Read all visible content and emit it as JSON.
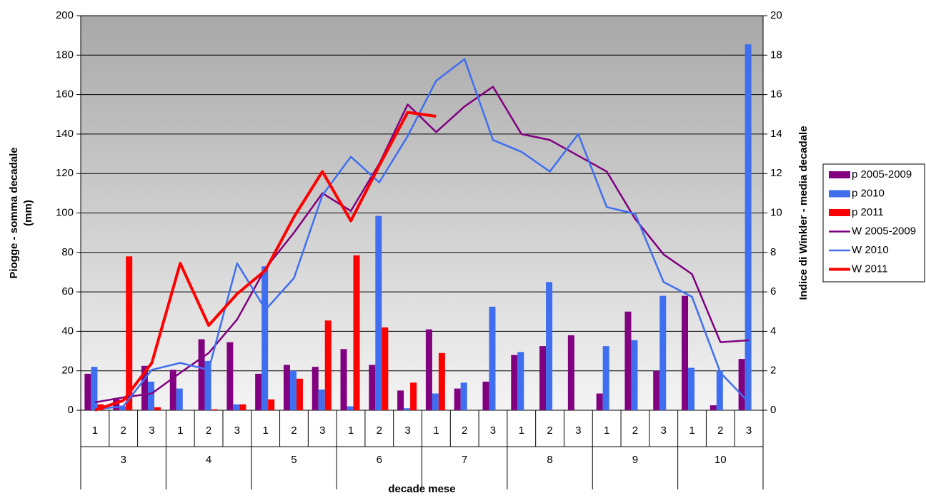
{
  "chart_data": {
    "type": "bar-line",
    "ylabel": [
      "Piogge - somma decadale",
      "(mm)"
    ],
    "y2label": "Indice di Winkler - media decadale",
    "xlabel": "decade mese",
    "categories": [
      "1",
      "2",
      "3",
      "1",
      "2",
      "3",
      "1",
      "2",
      "3",
      "1",
      "2",
      "3",
      "1",
      "2",
      "3",
      "1",
      "2",
      "3",
      "1",
      "2",
      "3",
      "1",
      "2",
      "3"
    ],
    "groups": [
      "3",
      "4",
      "5",
      "6",
      "7",
      "8",
      "9",
      "10"
    ],
    "ylim": [
      0,
      200
    ],
    "yticks": [
      0,
      20,
      40,
      60,
      80,
      100,
      120,
      140,
      160,
      180,
      200
    ],
    "y2lim": [
      0,
      20
    ],
    "y2ticks": [
      0,
      2,
      4,
      6,
      8,
      10,
      12,
      14,
      16,
      18,
      20
    ],
    "grid": true,
    "legend": "right",
    "series": [
      {
        "name": "p 2005-2009",
        "color": "#800080",
        "kind": "bar",
        "values": [
          18.5,
          6,
          22.5,
          20.5,
          36,
          34.5,
          18.5,
          23,
          22,
          31,
          23,
          10,
          41,
          11,
          14.5,
          28,
          32.5,
          38,
          8.5,
          50,
          20,
          58,
          2.5,
          26
        ]
      },
      {
        "name": "p 2010",
        "color": "#3f6ff0",
        "kind": "bar",
        "values": [
          22,
          2,
          14.5,
          11,
          25,
          3,
          73,
          20,
          10.5,
          2,
          98.5,
          1,
          8.5,
          14,
          52.5,
          29.5,
          65,
          0,
          32.5,
          35.5,
          58,
          21.5,
          20,
          185.5
        ]
      },
      {
        "name": "p 2011",
        "color": "#ff0000",
        "kind": "bar",
        "values": [
          3,
          78,
          1.5,
          0,
          0.5,
          3,
          5.5,
          16,
          45.5,
          78.5,
          42,
          14,
          29,
          null,
          null,
          null,
          null,
          null,
          null,
          null,
          null,
          null,
          null,
          null
        ]
      },
      {
        "name": "W 2005-2009",
        "color": "#800080",
        "kind": "line",
        "axis": "y2",
        "values": [
          0.4,
          0.65,
          0.85,
          1.9,
          2.9,
          4.6,
          7.2,
          9,
          11,
          10.1,
          12.5,
          15.5,
          14.1,
          15.4,
          16.4,
          14,
          13.7,
          12.9,
          12.1,
          9.7,
          7.9,
          6.9,
          3.45,
          3.55
        ]
      },
      {
        "name": "W 2010",
        "color": "#3f6ff0",
        "kind": "line",
        "axis": "y2",
        "values": [
          0.05,
          0.2,
          2.05,
          2.4,
          2.05,
          7.45,
          5.1,
          6.7,
          10.9,
          12.85,
          11.55,
          13.9,
          16.7,
          17.8,
          13.7,
          13.1,
          12.1,
          14,
          10.3,
          9.95,
          6.5,
          5.75,
          1.9,
          0.4
        ]
      },
      {
        "name": "W 2011",
        "color": "#ff0000",
        "kind": "line",
        "axis": "y2",
        "width": 4,
        "values": [
          0,
          0.5,
          2.4,
          7.45,
          4.3,
          5.9,
          7.1,
          9.8,
          12.1,
          9.6,
          12.4,
          15.1,
          14.9,
          null,
          null,
          null,
          null,
          null,
          null,
          null,
          null,
          null,
          null,
          null
        ]
      }
    ]
  }
}
